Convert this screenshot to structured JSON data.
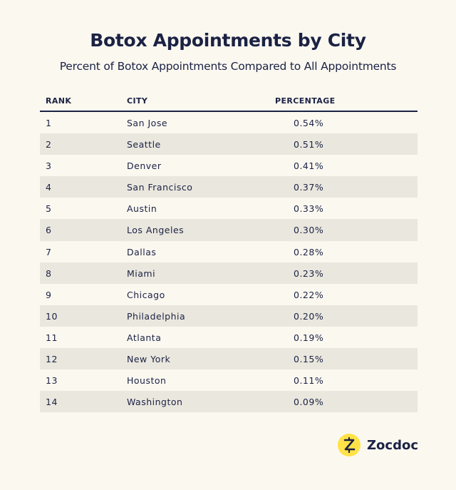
{
  "chart_data": {
    "type": "table",
    "title": "Botox Appointments by City",
    "subtitle": "Percent of Botox Appointments Compared to All Appointments",
    "columns": [
      "RANK",
      "CITY",
      "PERCENTAGE"
    ],
    "rows": [
      {
        "rank": "1",
        "city": "San Jose",
        "percentage": "0.54%"
      },
      {
        "rank": "2",
        "city": "Seattle",
        "percentage": "0.51%"
      },
      {
        "rank": "3",
        "city": "Denver",
        "percentage": "0.41%"
      },
      {
        "rank": "4",
        "city": "San Francisco",
        "percentage": "0.37%"
      },
      {
        "rank": "5",
        "city": "Austin",
        "percentage": "0.33%"
      },
      {
        "rank": "6",
        "city": "Los Angeles",
        "percentage": "0.30%"
      },
      {
        "rank": "7",
        "city": "Dallas",
        "percentage": "0.28%"
      },
      {
        "rank": "8",
        "city": "Miami",
        "percentage": "0.23%"
      },
      {
        "rank": "9",
        "city": "Chicago",
        "percentage": "0.22%"
      },
      {
        "rank": "10",
        "city": "Philadelphia",
        "percentage": "0.20%"
      },
      {
        "rank": "11",
        "city": "Atlanta",
        "percentage": "0.19%"
      },
      {
        "rank": "12",
        "city": "New York",
        "percentage": "0.15%"
      },
      {
        "rank": "13",
        "city": "Houston",
        "percentage": "0.11%"
      },
      {
        "rank": "14",
        "city": "Washington",
        "percentage": "0.09%"
      }
    ]
  },
  "brand": {
    "name": "Zocdoc",
    "logo_letter": "Z",
    "logo_color": "#ffe247",
    "text_color": "#1b2244",
    "stripe_color": "#eae7de",
    "background": "#fbf8f0"
  }
}
